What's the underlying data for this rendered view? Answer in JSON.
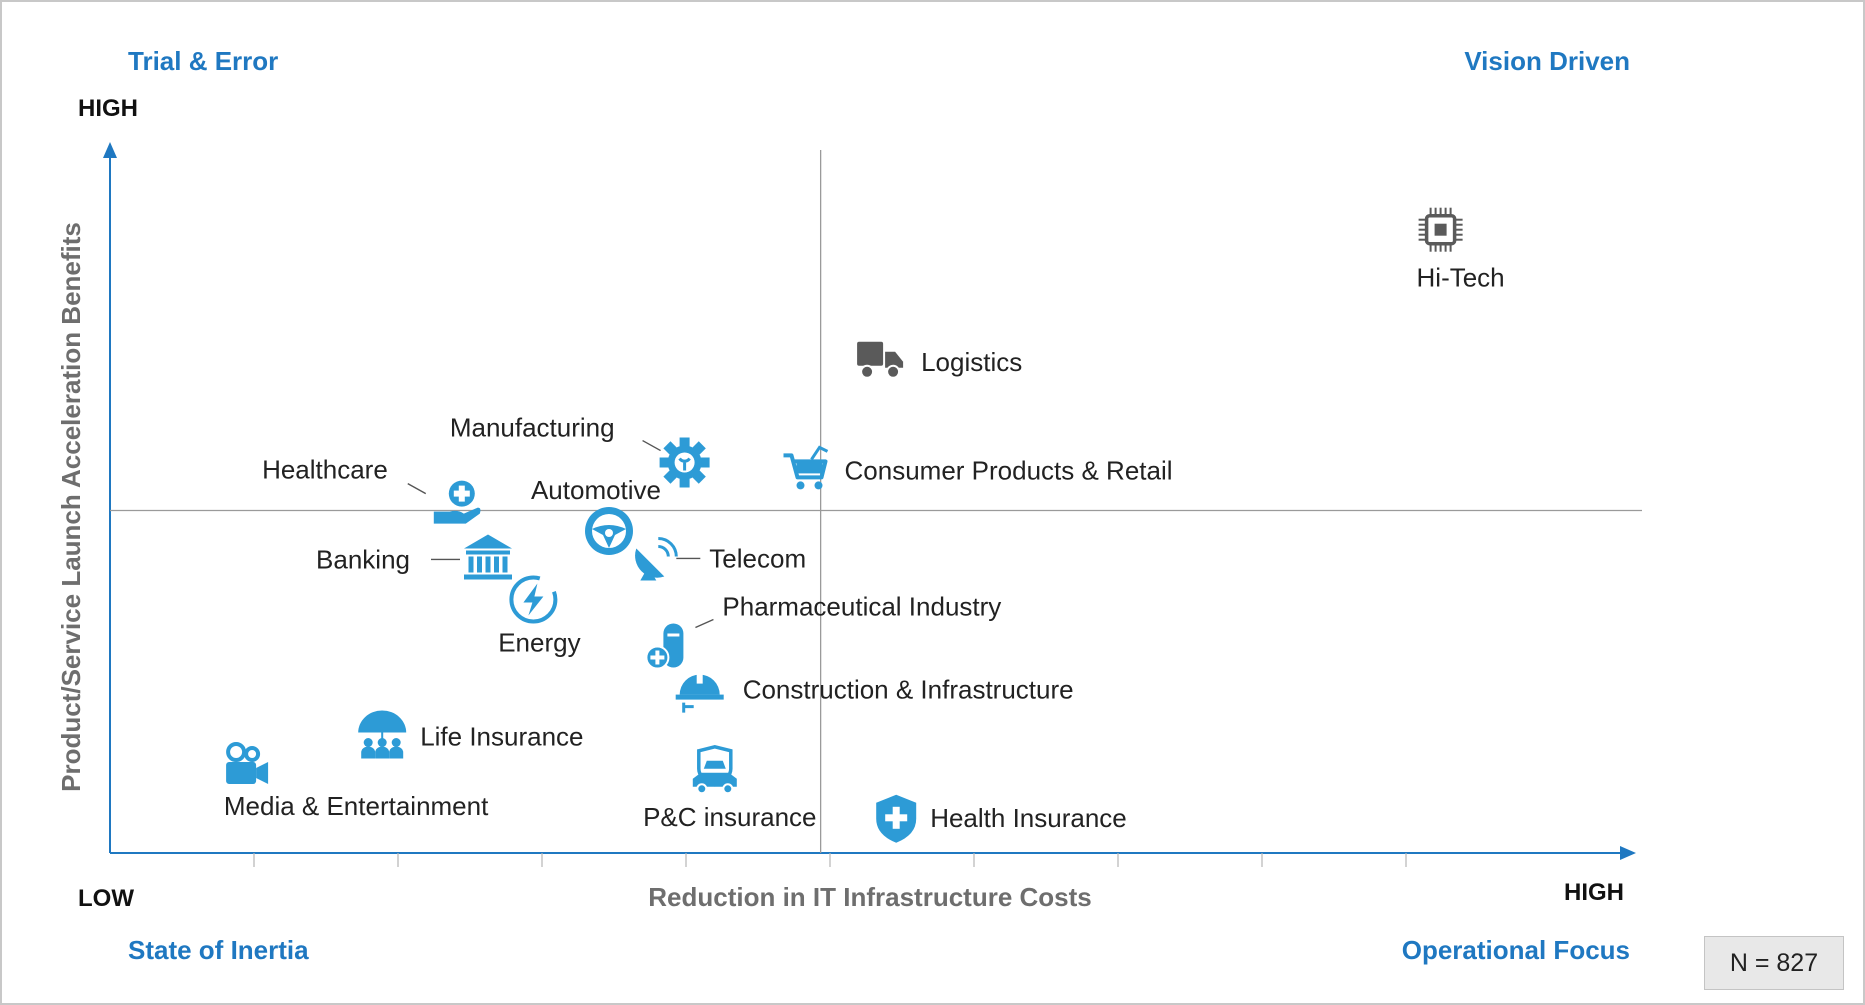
{
  "chart_data": {
    "type": "scatter",
    "title": "",
    "xlabel": "Reduction in IT Infrastructure Costs",
    "ylabel": "Product/Service Launch Acceleration Benefits",
    "x_low_label": "LOW",
    "x_high_label": "HIGH",
    "y_high_label": "HIGH",
    "xlim": [
      0,
      10
    ],
    "ylim": [
      0,
      10
    ],
    "midlines": {
      "x": 4.7,
      "y": 5
    },
    "grid": false,
    "quadrants": {
      "top_left": "Trial & Error",
      "top_right": "Vision Driven",
      "bottom_left": "State of Inertia",
      "bottom_right": "Operational Focus"
    },
    "sample_size": "N = 827",
    "accent_color": "#1f78c1",
    "points": [
      {
        "name": "Hi-Tech",
        "x": 8.8,
        "y": 9.1,
        "icon": "chip-icon",
        "color": "#5a5a5a"
      },
      {
        "name": "Logistics",
        "x": 5.1,
        "y": 7.2,
        "icon": "truck-icon",
        "color": "#5a5a5a"
      },
      {
        "name": "Consumer Products & Retail",
        "x": 4.6,
        "y": 5.6,
        "icon": "shopping-cart-icon",
        "color": "#2d9bd6"
      },
      {
        "name": "Manufacturing",
        "x": 3.8,
        "y": 5.7,
        "icon": "gear-icon",
        "color": "#2d9bd6"
      },
      {
        "name": "Healthcare",
        "x": 2.3,
        "y": 5.1,
        "icon": "medical-hand-icon",
        "color": "#2d9bd6"
      },
      {
        "name": "Automotive",
        "x": 3.3,
        "y": 4.7,
        "icon": "steering-wheel-icon",
        "color": "#2d9bd6"
      },
      {
        "name": "Telecom",
        "x": 3.6,
        "y": 4.3,
        "icon": "satellite-dish-icon",
        "color": "#2d9bd6"
      },
      {
        "name": "Banking",
        "x": 2.5,
        "y": 4.3,
        "icon": "bank-icon",
        "color": "#2d9bd6"
      },
      {
        "name": "Energy",
        "x": 2.8,
        "y": 3.7,
        "icon": "energy-icon",
        "color": "#2d9bd6"
      },
      {
        "name": "Pharmaceutical Industry",
        "x": 3.7,
        "y": 3.0,
        "icon": "pill-icon",
        "color": "#2d9bd6"
      },
      {
        "name": "Construction & Infrastructure",
        "x": 3.9,
        "y": 2.4,
        "icon": "hard-hat-icon",
        "color": "#2d9bd6"
      },
      {
        "name": "Life Insurance",
        "x": 1.8,
        "y": 1.7,
        "icon": "umbrella-family-icon",
        "color": "#2d9bd6"
      },
      {
        "name": "Media & Entertainment",
        "x": 0.9,
        "y": 1.3,
        "icon": "video-camera-icon",
        "color": "#2d9bd6"
      },
      {
        "name": "P&C insurance",
        "x": 4.0,
        "y": 1.2,
        "icon": "car-shield-icon",
        "color": "#2d9bd6"
      },
      {
        "name": "Health Insurance",
        "x": 5.2,
        "y": 0.5,
        "icon": "health-shield-icon",
        "color": "#2d9bd6"
      }
    ]
  }
}
